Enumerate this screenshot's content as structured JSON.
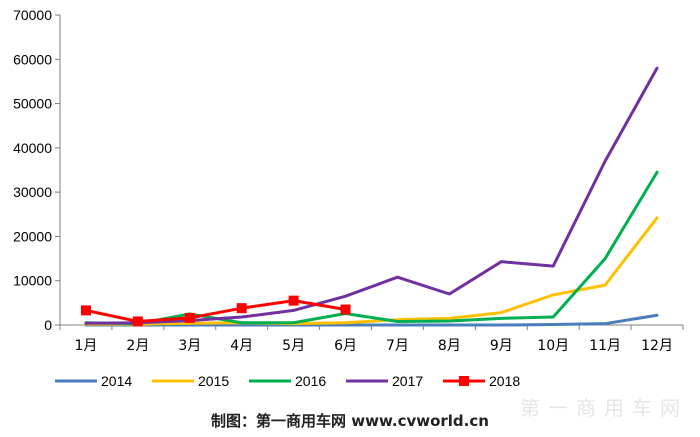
{
  "chart_data": {
    "type": "line",
    "categories": [
      "1月",
      "2月",
      "3月",
      "4月",
      "5月",
      "6月",
      "7月",
      "8月",
      "9月",
      "10月",
      "11月",
      "12月"
    ],
    "ylim": [
      0,
      70000
    ],
    "yticks": [
      0,
      10000,
      20000,
      30000,
      40000,
      50000,
      60000,
      70000
    ],
    "grid": false,
    "legend_position": "bottom",
    "series": [
      {
        "name": "2014",
        "color": "#4a7ebb",
        "marker": "none",
        "values": [
          0,
          0,
          0,
          0,
          0,
          0,
          0,
          0,
          0,
          100,
          300,
          2200
        ]
      },
      {
        "name": "2015",
        "color": "#ffc000",
        "marker": "none",
        "values": [
          200,
          200,
          400,
          500,
          300,
          500,
          1200,
          1500,
          2800,
          6800,
          9000,
          24200
        ]
      },
      {
        "name": "2016",
        "color": "#00b050",
        "marker": "none",
        "values": [
          500,
          300,
          2500,
          500,
          500,
          2600,
          800,
          900,
          1500,
          1800,
          15000,
          34500
        ]
      },
      {
        "name": "2017",
        "color": "#7030a0",
        "marker": "none",
        "values": [
          400,
          500,
          1000,
          1800,
          3300,
          6500,
          10800,
          7000,
          14300,
          13300,
          37000,
          58000
        ]
      },
      {
        "name": "2018",
        "color": "#ff0000",
        "marker": "square",
        "values": [
          3300,
          800,
          1600,
          3800,
          5500,
          3500,
          null,
          null,
          null,
          null,
          null,
          null
        ]
      }
    ]
  },
  "footer": {
    "credit": "制图：第一商用车网 www.cvworld.cn",
    "watermark": "第一商用车网"
  }
}
